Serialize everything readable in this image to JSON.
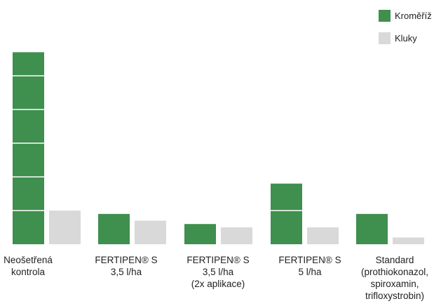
{
  "colors": {
    "series_kromeriz": "#3f8f4e",
    "series_kluky": "#d9d9d9",
    "segment_line": "#ffffff"
  },
  "legend": [
    {
      "label": "Kroměříž",
      "color": "#3f8f4e"
    },
    {
      "label": "Kluky",
      "color": "#d9d9d9"
    }
  ],
  "chart_data": {
    "type": "bar",
    "title": "",
    "xlabel": "",
    "ylabel": "",
    "categories": [
      "Neošetřená\nkontrola",
      "FERTIPEN® S\n3,5 l/ha",
      "FERTIPEN® S\n3,5 l/ha\n(2x aplikace)",
      "FERTIPEN® S\n5 l/ha",
      "Standard\n(prothiokonazol,\nspiroxamin,\ntrifloxystrobin)"
    ],
    "series": [
      {
        "name": "Kroměříž",
        "color": "#3f8f4e",
        "values": [
          28.5,
          4.5,
          3,
          9,
          4.5
        ]
      },
      {
        "name": "Kluky",
        "color": "#d9d9d9",
        "values": [
          5,
          3.5,
          2.5,
          2.5,
          1
        ]
      }
    ],
    "ylim": [
      0,
      30
    ],
    "grid": false,
    "axes_visible": false,
    "legend_position": "top-right"
  }
}
